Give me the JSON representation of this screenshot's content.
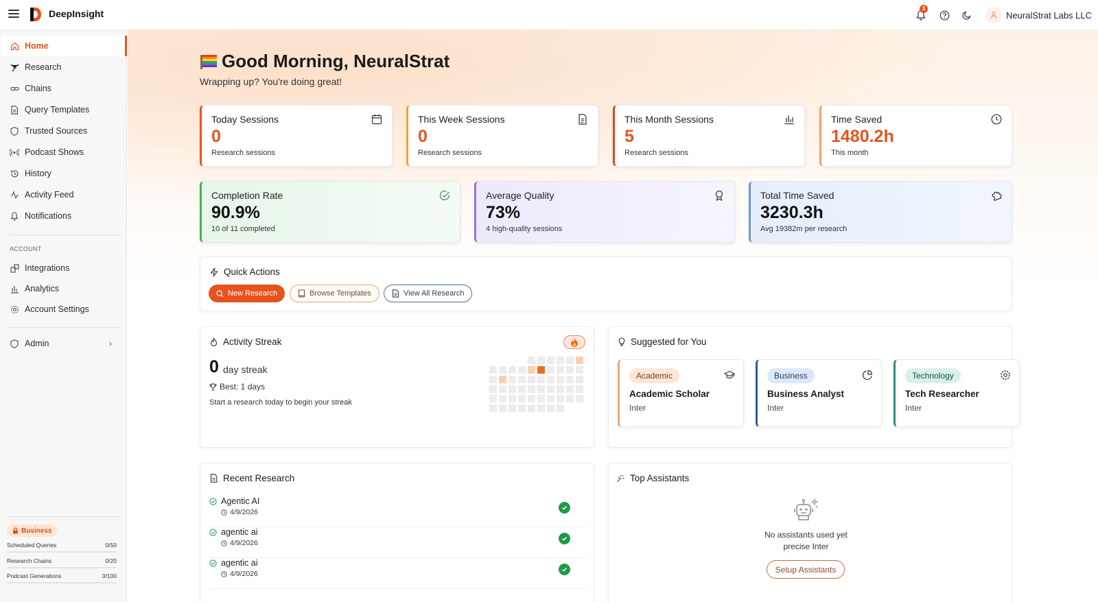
{
  "brand": {
    "name": "DeepInsight"
  },
  "topbar": {
    "notification_count": "3",
    "user_name": "NeuralStrat Labs LLC"
  },
  "sidebar": {
    "items": [
      {
        "label": "Home",
        "icon": "home-icon"
      },
      {
        "label": "Research",
        "icon": "research-icon"
      },
      {
        "label": "Chains",
        "icon": "link-icon"
      },
      {
        "label": "Query Templates",
        "icon": "file-icon"
      },
      {
        "label": "Trusted Sources",
        "icon": "shield-icon"
      },
      {
        "label": "Podcast Shows",
        "icon": "broadcast-icon"
      },
      {
        "label": "History",
        "icon": "history-icon"
      },
      {
        "label": "Activity Feed",
        "icon": "activity-icon"
      },
      {
        "label": "Notifications",
        "icon": "bell-icon"
      }
    ],
    "account_section_label": "ACCOUNT",
    "account_items": [
      {
        "label": "Integrations",
        "icon": "integrations-icon"
      },
      {
        "label": "Analytics",
        "icon": "bar-chart-icon"
      },
      {
        "label": "Account Settings",
        "icon": "gear-icon"
      }
    ],
    "admin_label": "Admin",
    "plan_label": "Business",
    "usage": [
      {
        "label": "Scheduled Queries",
        "value": "0/50"
      },
      {
        "label": "Research Chains",
        "value": "0/20"
      },
      {
        "label": "Podcast Generations",
        "value": "0/100"
      }
    ]
  },
  "greeting": {
    "title": "Good Morning, NeuralStrat",
    "subtitle": "Wrapping up? You're doing great!"
  },
  "stats": [
    {
      "title": "Today Sessions",
      "value": "0",
      "sub": "Research sessions",
      "icon": "calendar-icon"
    },
    {
      "title": "This Week Sessions",
      "value": "0",
      "sub": "Research sessions",
      "icon": "document-icon"
    },
    {
      "title": "This Month Sessions",
      "value": "5",
      "sub": "Research sessions",
      "icon": "bar-chart-icon"
    },
    {
      "title": "Time Saved",
      "value": "1480.2h",
      "sub": "This month",
      "icon": "clock-icon"
    }
  ],
  "kpis": [
    {
      "title": "Completion Rate",
      "value": "90.9%",
      "sub": "10 of 11 completed",
      "icon": "check-circle-icon"
    },
    {
      "title": "Average Quality",
      "value": "73%",
      "sub": "4 high-quality sessions",
      "icon": "award-icon"
    },
    {
      "title": "Total Time Saved",
      "value": "3230.3h",
      "sub": "Avg 19382m per research",
      "icon": "puzzle-icon"
    }
  ],
  "quick_actions": {
    "title": "Quick Actions",
    "new_research": "New Research",
    "browse_templates": "Browse Templates",
    "view_all": "View All Research"
  },
  "streak": {
    "title": "Activity Streak",
    "count": "0",
    "label": "day streak",
    "best": "Best: 1 days",
    "hint": "Start a research today to begin your streak"
  },
  "suggested": {
    "title": "Suggested for You",
    "cards": [
      {
        "tag": "Academic",
        "name": "Academic Scholar",
        "sub": "Inter",
        "icon": "graduation-cap-icon"
      },
      {
        "tag": "Business",
        "name": "Business Analyst",
        "sub": "Inter",
        "icon": "pie-chart-icon"
      },
      {
        "tag": "Technology",
        "name": "Tech Researcher",
        "sub": "Inter",
        "icon": "gear-icon"
      }
    ]
  },
  "recent": {
    "title": "Recent Research",
    "items": [
      {
        "name": "Agentic AI",
        "date": "4/9/2026"
      },
      {
        "name": "agentic ai",
        "date": "4/9/2026"
      },
      {
        "name": "agentic ai",
        "date": "4/9/2026"
      }
    ]
  },
  "top_assistants": {
    "title": "Top Assistants",
    "empty_line1": "No assistants used yet",
    "empty_line2": "precise Inter",
    "setup": "Setup Assistants"
  },
  "colors": {
    "accent": "#e8531d",
    "success": "#1e9a4a"
  }
}
